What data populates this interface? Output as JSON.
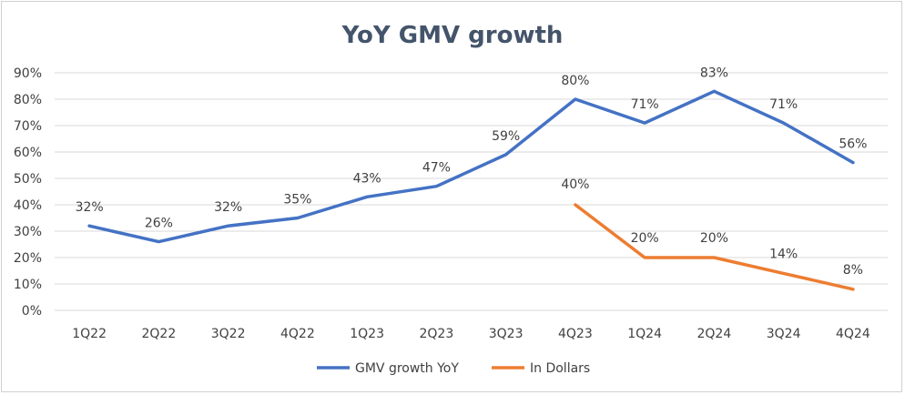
{
  "chart_data": {
    "type": "line",
    "title": "YoY GMV growth",
    "categories": [
      "1Q22",
      "2Q22",
      "3Q22",
      "4Q22",
      "1Q23",
      "2Q23",
      "3Q23",
      "4Q23",
      "1Q24",
      "2Q24",
      "3Q24",
      "4Q24"
    ],
    "yticks": [
      "0%",
      "10%",
      "20%",
      "30%",
      "40%",
      "50%",
      "60%",
      "70%",
      "80%",
      "90%"
    ],
    "ylim": [
      0,
      90
    ],
    "grid": true,
    "legend_position": "bottom",
    "series": [
      {
        "name": "GMV growth YoY",
        "color": "#4472c4",
        "values": [
          32,
          26,
          32,
          35,
          43,
          47,
          59,
          80,
          71,
          83,
          71,
          56
        ],
        "labels": [
          "32%",
          "26%",
          "32%",
          "35%",
          "43%",
          "47%",
          "59%",
          "80%",
          "71%",
          "83%",
          "71%",
          "56%"
        ]
      },
      {
        "name": "In Dollars",
        "color": "#ed7d31",
        "values": [
          null,
          null,
          null,
          null,
          null,
          null,
          null,
          40,
          20,
          20,
          14,
          8
        ],
        "labels": [
          "",
          "",
          "",
          "",
          "",
          "",
          "",
          "40%",
          "20%",
          "20%",
          "14%",
          "8%"
        ]
      }
    ]
  }
}
